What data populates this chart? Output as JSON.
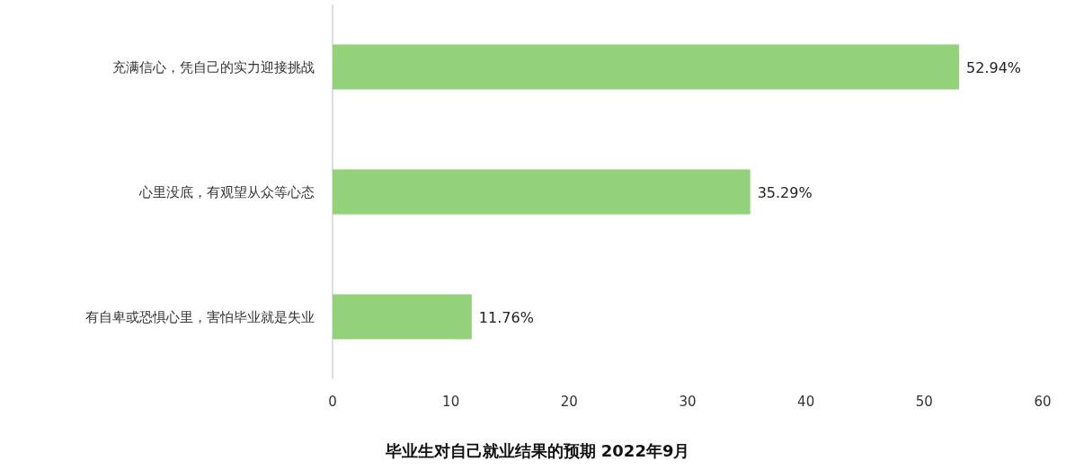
{
  "chart_data": {
    "type": "bar",
    "orientation": "horizontal",
    "title": "毕业生对自己就业结果的预期 2022年9月",
    "categories": [
      "充满信心，凭自己的实力迎接挑战",
      "心里没底，有观望从众等心态",
      "有自卑或恐惧心里，害怕毕业就是失业"
    ],
    "values": [
      52.94,
      35.29,
      11.76
    ],
    "color": "#93d27a",
    "value_labels": [
      "52.94%",
      "35.29%",
      "11.76%"
    ],
    "xlim": [
      0,
      60
    ],
    "xticks": [
      0,
      10,
      20,
      30,
      40,
      50,
      60
    ]
  }
}
